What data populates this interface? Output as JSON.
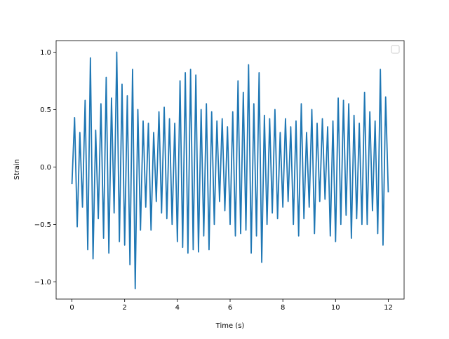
{
  "chart_data": {
    "type": "line",
    "title": "",
    "xlabel": "Time (s)",
    "ylabel": "Strain",
    "xlim": [
      -0.6,
      12.6
    ],
    "ylim": [
      -1.15,
      1.1
    ],
    "xticks": [
      0,
      2,
      4,
      6,
      8,
      10,
      12
    ],
    "xtick_labels": [
      "0",
      "2",
      "4",
      "6",
      "8",
      "10",
      "12"
    ],
    "yticks": [
      -1.0,
      -0.5,
      0.0,
      0.5,
      1.0
    ],
    "ytick_labels": [
      "−1.0",
      "−0.5",
      "0.0",
      "0.5",
      "1.0"
    ],
    "grid": false,
    "legend": {
      "placement": "top-right",
      "entries": []
    },
    "series": [
      {
        "color": "#1f77b4",
        "x": [
          0.0,
          0.1,
          0.2,
          0.3,
          0.4,
          0.5,
          0.6,
          0.7,
          0.8,
          0.9,
          1.0,
          1.1,
          1.2,
          1.3,
          1.4,
          1.5,
          1.6,
          1.7,
          1.8,
          1.9,
          2.0,
          2.1,
          2.2,
          2.3,
          2.4,
          2.5,
          2.6,
          2.7,
          2.8,
          2.9,
          3.0,
          3.1,
          3.2,
          3.3,
          3.4,
          3.5,
          3.6,
          3.7,
          3.8,
          3.9,
          4.0,
          4.1,
          4.2,
          4.3,
          4.4,
          4.5,
          4.6,
          4.7,
          4.8,
          4.9,
          5.0,
          5.1,
          5.2,
          5.3,
          5.4,
          5.5,
          5.6,
          5.7,
          5.8,
          5.9,
          6.0,
          6.1,
          6.2,
          6.3,
          6.4,
          6.5,
          6.6,
          6.7,
          6.8,
          6.9,
          7.0,
          7.1,
          7.2,
          7.3,
          7.4,
          7.5,
          7.6,
          7.7,
          7.8,
          7.9,
          8.0,
          8.1,
          8.2,
          8.3,
          8.4,
          8.5,
          8.6,
          8.7,
          8.8,
          8.9,
          9.0,
          9.1,
          9.2,
          9.3,
          9.4,
          9.5,
          9.6,
          9.7,
          9.8,
          9.9,
          10.0,
          10.1,
          10.2,
          10.3,
          10.4,
          10.5,
          10.6,
          10.7,
          10.8,
          10.9,
          11.0,
          11.1,
          11.2,
          11.3,
          11.4,
          11.5,
          11.6,
          11.7,
          11.8,
          11.9,
          12.0
        ],
        "y": [
          -0.15,
          0.43,
          -0.52,
          0.3,
          -0.35,
          0.58,
          -0.72,
          0.95,
          -0.8,
          0.32,
          -0.45,
          0.55,
          -0.62,
          0.78,
          -0.75,
          0.6,
          -0.4,
          1.0,
          -0.65,
          0.72,
          -0.68,
          0.62,
          -0.85,
          0.85,
          -1.06,
          0.5,
          -0.55,
          0.4,
          -0.35,
          0.38,
          -0.55,
          0.3,
          -0.3,
          0.48,
          -0.4,
          0.52,
          -0.45,
          0.42,
          -0.5,
          0.38,
          -0.65,
          0.75,
          -0.7,
          0.82,
          -0.75,
          0.85,
          -0.72,
          0.8,
          -0.74,
          0.5,
          -0.6,
          0.55,
          -0.72,
          0.48,
          -0.5,
          0.4,
          -0.3,
          0.42,
          -0.38,
          0.35,
          -0.5,
          0.48,
          -0.6,
          0.75,
          -0.58,
          0.65,
          -0.55,
          0.89,
          -0.75,
          0.55,
          -0.6,
          0.82,
          -0.83,
          0.45,
          -0.5,
          0.42,
          -0.4,
          0.5,
          -0.45,
          0.3,
          -0.35,
          0.42,
          -0.3,
          0.35,
          -0.5,
          0.4,
          -0.6,
          0.55,
          -0.45,
          0.3,
          -0.35,
          0.5,
          -0.58,
          0.38,
          -0.3,
          0.42,
          -0.28,
          0.35,
          -0.6,
          0.4,
          -0.65,
          0.6,
          -0.5,
          0.58,
          -0.42,
          0.55,
          -0.62,
          0.45,
          -0.45,
          0.38,
          -0.5,
          0.65,
          -0.5,
          0.48,
          -0.38,
          0.4,
          -0.58,
          0.85,
          -0.68,
          0.61,
          -0.22
        ]
      }
    ]
  }
}
